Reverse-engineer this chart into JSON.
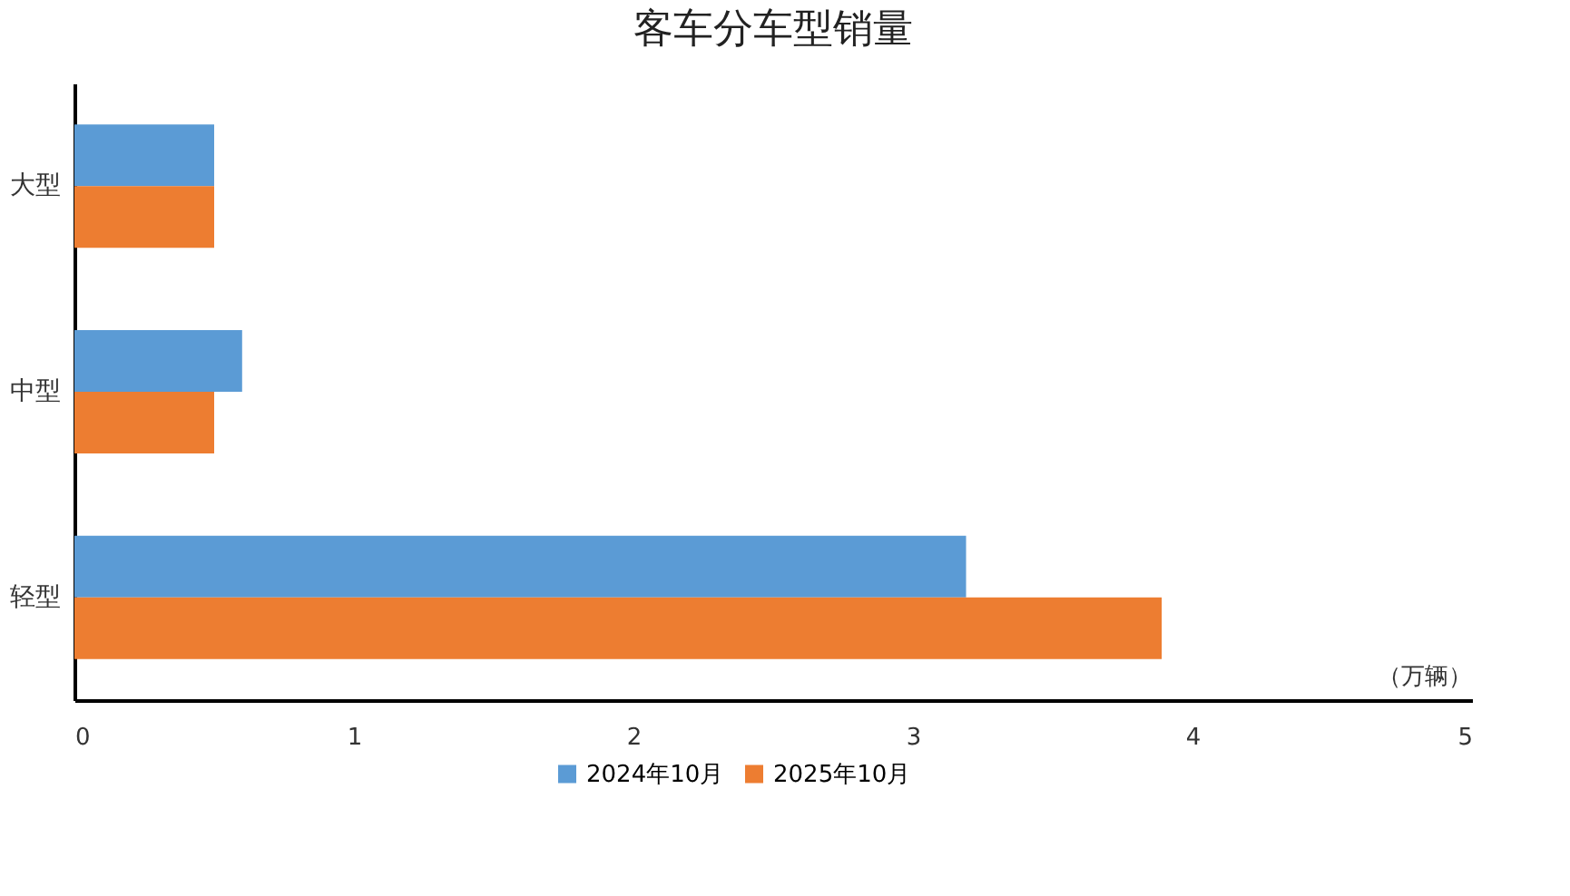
{
  "chart_data": {
    "type": "bar",
    "orientation": "horizontal",
    "title": "客车分车型销量",
    "xlabel": "（万辆）",
    "categories": [
      "大型",
      "中型",
      "轻型"
    ],
    "series": [
      {
        "name": "2024年10月",
        "color": "#5b9bd5",
        "values": [
          0.5,
          0.6,
          3.19
        ]
      },
      {
        "name": "2025年10月",
        "color": "#ed7d31",
        "values": [
          0.5,
          0.5,
          3.89
        ]
      }
    ],
    "xlim": [
      0,
      5
    ],
    "xticks": [
      0,
      1,
      2,
      3,
      4,
      5
    ],
    "grid": false,
    "legend": "bottom"
  }
}
